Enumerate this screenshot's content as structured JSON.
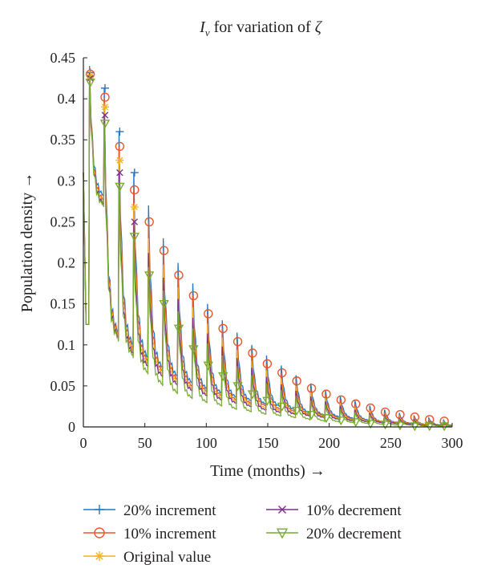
{
  "chart_data": {
    "type": "line",
    "title_symbol": "I",
    "title_subscript": "v",
    "title_text": " for variation of ",
    "title_param": "ζ",
    "xlabel": "Time (months) →",
    "ylabel": "Population density →",
    "xlim": [
      0,
      300
    ],
    "ylim": [
      0,
      0.45
    ],
    "xticks": [
      "0",
      "50",
      "100",
      "150",
      "200",
      "250",
      "300"
    ],
    "yticks": [
      "0",
      "0.05",
      "0.1",
      "0.15",
      "0.2",
      "0.25",
      "0.3",
      "0.35",
      "0.4",
      "0.45"
    ],
    "legend_position": "bottom",
    "grid": false,
    "peak_times": [
      5,
      17,
      29,
      41,
      53,
      65,
      77,
      89,
      101,
      113,
      125,
      137,
      149,
      161,
      173,
      185,
      197,
      209,
      221,
      233,
      245,
      257,
      269,
      281,
      293
    ],
    "series": [
      {
        "name": "20% increment",
        "color": "#1f77c4",
        "marker": "plus",
        "peaks": [
          0.44,
          0.413,
          0.36,
          0.31,
          0.27,
          0.23,
          0.2,
          0.175,
          0.15,
          0.13,
          0.115,
          0.1,
          0.087,
          0.075,
          0.063,
          0.053,
          0.045,
          0.038,
          0.032,
          0.026,
          0.021,
          0.017,
          0.014,
          0.011,
          0.009
        ],
        "troughs": [
          0.28,
          0.112,
          0.097,
          0.082,
          0.07,
          0.06,
          0.052,
          0.045,
          0.04,
          0.035,
          0.031,
          0.027,
          0.024,
          0.02,
          0.017,
          0.014,
          0.012,
          0.01,
          0.008,
          0.006,
          0.005,
          0.004,
          0.003,
          0.002,
          0.002
        ],
        "marker_values": [
          0.432,
          0.413,
          0.36,
          0.31
        ]
      },
      {
        "name": "10% increment",
        "color": "#e8562a",
        "marker": "circle",
        "peaks": [
          0.438,
          0.402,
          0.342,
          0.29,
          0.25,
          0.215,
          0.185,
          0.16,
          0.138,
          0.12,
          0.104,
          0.09,
          0.077,
          0.066,
          0.056,
          0.047,
          0.04,
          0.033,
          0.028,
          0.023,
          0.018,
          0.015,
          0.012,
          0.009,
          0.007
        ],
        "troughs": [
          0.275,
          0.11,
          0.093,
          0.078,
          0.066,
          0.056,
          0.048,
          0.042,
          0.037,
          0.032,
          0.028,
          0.025,
          0.021,
          0.018,
          0.015,
          0.013,
          0.011,
          0.009,
          0.007,
          0.006,
          0.005,
          0.004,
          0.003,
          0.002,
          0.002
        ],
        "marker_values": [
          0.43,
          0.402,
          0.342,
          0.289,
          0.25,
          0.215,
          0.185,
          0.16,
          0.138,
          0.12,
          0.104,
          0.09,
          0.077,
          0.066,
          0.056,
          0.047,
          0.04,
          0.033,
          0.028,
          0.023,
          0.018,
          0.015,
          0.012,
          0.009,
          0.007
        ]
      },
      {
        "name": "Original value",
        "color": "#f7b21e",
        "marker": "asterisk",
        "peaks": [
          0.435,
          0.39,
          0.325,
          0.268,
          0.23,
          0.198,
          0.17,
          0.146,
          0.126,
          0.109,
          0.094,
          0.081,
          0.069,
          0.059,
          0.05,
          0.042,
          0.035,
          0.029,
          0.024,
          0.02,
          0.016,
          0.013,
          0.01,
          0.008,
          0.006
        ],
        "troughs": [
          0.272,
          0.108,
          0.09,
          0.075,
          0.063,
          0.053,
          0.045,
          0.039,
          0.034,
          0.03,
          0.026,
          0.022,
          0.019,
          0.016,
          0.014,
          0.012,
          0.01,
          0.008,
          0.007,
          0.005,
          0.004,
          0.003,
          0.003,
          0.002,
          0.001
        ],
        "marker_values": [
          0.428,
          0.39,
          0.325,
          0.268
        ]
      },
      {
        "name": "10% decrement",
        "color": "#7e2f8e",
        "marker": "x",
        "peaks": [
          0.432,
          0.38,
          0.31,
          0.25,
          0.212,
          0.182,
          0.156,
          0.133,
          0.114,
          0.098,
          0.084,
          0.072,
          0.061,
          0.052,
          0.044,
          0.037,
          0.031,
          0.026,
          0.021,
          0.017,
          0.014,
          0.011,
          0.009,
          0.007,
          0.005
        ],
        "troughs": [
          0.27,
          0.106,
          0.087,
          0.072,
          0.06,
          0.05,
          0.043,
          0.037,
          0.032,
          0.028,
          0.024,
          0.02,
          0.017,
          0.015,
          0.013,
          0.011,
          0.009,
          0.007,
          0.006,
          0.005,
          0.004,
          0.003,
          0.002,
          0.002,
          0.001
        ],
        "marker_values": [
          0.425,
          0.38,
          0.31,
          0.25
        ]
      },
      {
        "name": "20% decrement",
        "color": "#77ac30",
        "marker": "triangle-down",
        "peaks": [
          0.43,
          0.37,
          0.295,
          0.233,
          0.195,
          0.166,
          0.141,
          0.12,
          0.102,
          0.087,
          0.074,
          0.063,
          0.053,
          0.045,
          0.038,
          0.032,
          0.027,
          0.022,
          0.018,
          0.015,
          0.012,
          0.009,
          0.007,
          0.006,
          0.004
        ],
        "troughs": [
          0.268,
          0.104,
          0.084,
          0.064,
          0.05,
          0.04,
          0.034,
          0.029,
          0.025,
          0.021,
          0.018,
          0.015,
          0.013,
          0.011,
          0.009,
          0.007,
          0.006,
          0.005,
          0.004,
          0.003,
          0.002,
          0.002,
          0.001,
          0.001,
          0.001
        ],
        "marker_values": [
          0.42,
          0.37,
          0.293,
          0.232,
          0.185,
          0.15,
          0.12,
          0.095,
          0.075,
          0.062,
          0.05,
          0.04,
          0.032,
          0.025,
          0.02,
          0.015,
          0.011,
          0.008,
          0.006,
          0.004,
          0.003,
          0.002,
          0.001,
          0.001,
          0.001
        ]
      }
    ]
  }
}
